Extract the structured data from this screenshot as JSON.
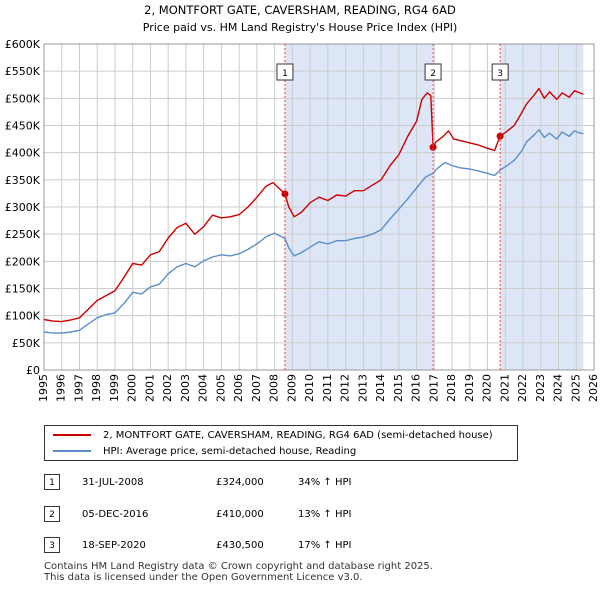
{
  "colors": {
    "price_line": "#cc0000",
    "hpi_line": "#5b8fc9",
    "shade": "#dde6f7",
    "grid": "#cccccc",
    "marker_line": "#ee4444"
  },
  "chart_data": {
    "type": "line",
    "title": "2, MONTFORT GATE, CAVERSHAM, READING, RG4 6AD",
    "subtitle": "Price paid vs. HM Land Registry's House Price Index (HPI)",
    "xlabel": "",
    "ylabel": "",
    "xlim": [
      1995,
      2026
    ],
    "ylim": [
      0,
      600000
    ],
    "yticks": [
      0,
      50000,
      100000,
      150000,
      200000,
      250000,
      300000,
      350000,
      400000,
      450000,
      500000,
      550000,
      600000
    ],
    "ytick_labels": [
      "£0",
      "£50K",
      "£100K",
      "£150K",
      "£200K",
      "£250K",
      "£300K",
      "£350K",
      "£400K",
      "£450K",
      "£500K",
      "£550K",
      "£600K"
    ],
    "xticks": [
      "1995",
      "1996",
      "1997",
      "1998",
      "1999",
      "2000",
      "2001",
      "2002",
      "2003",
      "2004",
      "2005",
      "2006",
      "2007",
      "2008",
      "2009",
      "2010",
      "2011",
      "2012",
      "2013",
      "2014",
      "2015",
      "2016",
      "2017",
      "2018",
      "2019",
      "2020",
      "2021",
      "2022",
      "2023",
      "2024",
      "2025",
      "2026"
    ],
    "grid": true,
    "shaded_ranges": [
      [
        2008.58,
        2016.93
      ],
      [
        2020.71,
        2025.4
      ]
    ],
    "series": [
      {
        "name": "2, MONTFORT GATE, CAVERSHAM, READING, RG4 6AD (semi-detached house)",
        "points": [
          [
            1995.0,
            93000
          ],
          [
            1995.5,
            90000
          ],
          [
            1996.0,
            89000
          ],
          [
            1996.5,
            92000
          ],
          [
            1997.0,
            96000
          ],
          [
            1997.5,
            112000
          ],
          [
            1998.0,
            128000
          ],
          [
            1998.5,
            137000
          ],
          [
            1999.0,
            146000
          ],
          [
            1999.5,
            170000
          ],
          [
            2000.0,
            196000
          ],
          [
            2000.5,
            193000
          ],
          [
            2001.0,
            212000
          ],
          [
            2001.5,
            218000
          ],
          [
            2002.0,
            243000
          ],
          [
            2002.5,
            262000
          ],
          [
            2003.0,
            270000
          ],
          [
            2003.5,
            250000
          ],
          [
            2004.0,
            264000
          ],
          [
            2004.5,
            285000
          ],
          [
            2005.0,
            280000
          ],
          [
            2005.5,
            282000
          ],
          [
            2006.0,
            286000
          ],
          [
            2006.5,
            300000
          ],
          [
            2007.0,
            318000
          ],
          [
            2007.5,
            338000
          ],
          [
            2007.9,
            345000
          ],
          [
            2008.3,
            333000
          ],
          [
            2008.58,
            324000
          ],
          [
            2008.8,
            300000
          ],
          [
            2009.1,
            282000
          ],
          [
            2009.5,
            290000
          ],
          [
            2010.0,
            308000
          ],
          [
            2010.5,
            318000
          ],
          [
            2011.0,
            312000
          ],
          [
            2011.5,
            322000
          ],
          [
            2012.0,
            320000
          ],
          [
            2012.5,
            330000
          ],
          [
            2013.0,
            330000
          ],
          [
            2013.5,
            340000
          ],
          [
            2014.0,
            350000
          ],
          [
            2014.5,
            376000
          ],
          [
            2015.0,
            396000
          ],
          [
            2015.5,
            430000
          ],
          [
            2016.0,
            458000
          ],
          [
            2016.3,
            498000
          ],
          [
            2016.6,
            510000
          ],
          [
            2016.8,
            505000
          ],
          [
            2016.93,
            410000
          ],
          [
            2017.1,
            420000
          ],
          [
            2017.5,
            430000
          ],
          [
            2017.8,
            440000
          ],
          [
            2018.1,
            425000
          ],
          [
            2018.5,
            422000
          ],
          [
            2019.0,
            418000
          ],
          [
            2019.5,
            414000
          ],
          [
            2020.0,
            408000
          ],
          [
            2020.4,
            404000
          ],
          [
            2020.71,
            430500
          ],
          [
            2021.0,
            437000
          ],
          [
            2021.5,
            450000
          ],
          [
            2021.9,
            472000
          ],
          [
            2022.2,
            490000
          ],
          [
            2022.6,
            505000
          ],
          [
            2022.9,
            518000
          ],
          [
            2023.2,
            500000
          ],
          [
            2023.5,
            512000
          ],
          [
            2023.9,
            498000
          ],
          [
            2024.2,
            510000
          ],
          [
            2024.6,
            502000
          ],
          [
            2024.9,
            514000
          ],
          [
            2025.2,
            510000
          ],
          [
            2025.4,
            508000
          ]
        ]
      },
      {
        "name": "HPI: Average price, semi-detached house, Reading",
        "points": [
          [
            1995.0,
            70000
          ],
          [
            1995.5,
            68000
          ],
          [
            1996.0,
            68000
          ],
          [
            1996.5,
            70000
          ],
          [
            1997.0,
            73000
          ],
          [
            1997.5,
            85000
          ],
          [
            1998.0,
            96000
          ],
          [
            1998.5,
            102000
          ],
          [
            1999.0,
            105000
          ],
          [
            1999.5,
            122000
          ],
          [
            2000.0,
            143000
          ],
          [
            2000.5,
            140000
          ],
          [
            2001.0,
            153000
          ],
          [
            2001.5,
            158000
          ],
          [
            2002.0,
            177000
          ],
          [
            2002.5,
            190000
          ],
          [
            2003.0,
            196000
          ],
          [
            2003.5,
            190000
          ],
          [
            2004.0,
            201000
          ],
          [
            2004.5,
            208000
          ],
          [
            2005.0,
            212000
          ],
          [
            2005.5,
            210000
          ],
          [
            2006.0,
            214000
          ],
          [
            2006.5,
            222000
          ],
          [
            2007.0,
            232000
          ],
          [
            2007.5,
            245000
          ],
          [
            2008.0,
            252000
          ],
          [
            2008.58,
            242000
          ],
          [
            2008.8,
            225000
          ],
          [
            2009.1,
            210000
          ],
          [
            2009.5,
            216000
          ],
          [
            2010.0,
            226000
          ],
          [
            2010.5,
            236000
          ],
          [
            2011.0,
            232000
          ],
          [
            2011.5,
            238000
          ],
          [
            2012.0,
            238000
          ],
          [
            2012.5,
            242000
          ],
          [
            2013.0,
            245000
          ],
          [
            2013.5,
            250000
          ],
          [
            2014.0,
            258000
          ],
          [
            2014.5,
            278000
          ],
          [
            2015.0,
            296000
          ],
          [
            2015.5,
            315000
          ],
          [
            2016.0,
            335000
          ],
          [
            2016.5,
            355000
          ],
          [
            2016.93,
            362000
          ],
          [
            2017.2,
            372000
          ],
          [
            2017.6,
            382000
          ],
          [
            2018.0,
            376000
          ],
          [
            2018.5,
            372000
          ],
          [
            2019.0,
            370000
          ],
          [
            2019.5,
            366000
          ],
          [
            2020.0,
            362000
          ],
          [
            2020.4,
            358000
          ],
          [
            2020.71,
            368000
          ],
          [
            2021.0,
            374000
          ],
          [
            2021.5,
            386000
          ],
          [
            2021.9,
            402000
          ],
          [
            2022.2,
            420000
          ],
          [
            2022.6,
            432000
          ],
          [
            2022.9,
            442000
          ],
          [
            2023.2,
            428000
          ],
          [
            2023.5,
            436000
          ],
          [
            2023.9,
            425000
          ],
          [
            2024.2,
            438000
          ],
          [
            2024.6,
            430000
          ],
          [
            2024.9,
            440000
          ],
          [
            2025.2,
            436000
          ],
          [
            2025.4,
            435000
          ]
        ]
      }
    ],
    "sales": [
      {
        "num": "1",
        "x": 2008.58,
        "price": 324000
      },
      {
        "num": "2",
        "x": 2016.93,
        "price": 410000
      },
      {
        "num": "3",
        "x": 2020.71,
        "price": 430500
      }
    ]
  },
  "legend": {
    "price_label": "2, MONTFORT GATE, CAVERSHAM, READING, RG4 6AD (semi-detached house)",
    "hpi_label": "HPI: Average price, semi-detached house, Reading"
  },
  "sales_table": [
    {
      "num": "1",
      "date": "31-JUL-2008",
      "price": "£324,000",
      "hpi": "34% ↑ HPI"
    },
    {
      "num": "2",
      "date": "05-DEC-2016",
      "price": "£410,000",
      "hpi": "13% ↑ HPI"
    },
    {
      "num": "3",
      "date": "18-SEP-2020",
      "price": "£430,500",
      "hpi": "17% ↑ HPI"
    }
  ],
  "footer": {
    "line1": "Contains HM Land Registry data © Crown copyright and database right 2025.",
    "line2": "This data is licensed under the Open Government Licence v3.0."
  }
}
